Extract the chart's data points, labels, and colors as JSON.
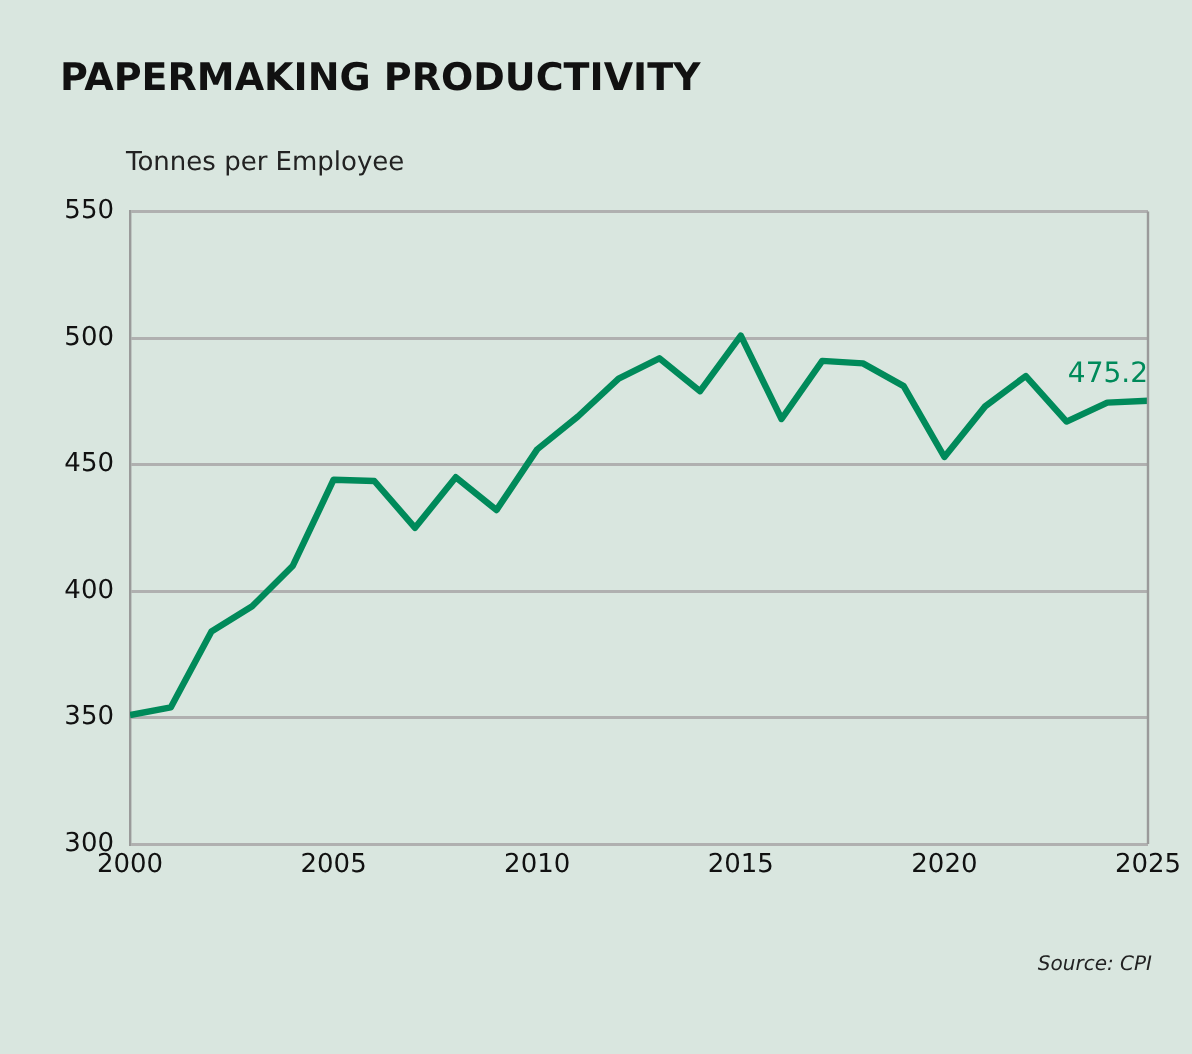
{
  "chart_data": {
    "type": "line",
    "title": "PAPERMAKING PRODUCTIVITY",
    "ylabel": "Tonnes per Employee",
    "x": [
      2000,
      2001,
      2002,
      2003,
      2004,
      2005,
      2006,
      2007,
      2008,
      2009,
      2010,
      2011,
      2012,
      2013,
      2014,
      2015,
      2016,
      2017,
      2018,
      2019,
      2020,
      2021,
      2022,
      2023,
      2024,
      2025
    ],
    "series": [
      {
        "color": "#008a5a",
        "values": [
          351,
          354,
          384,
          394,
          410,
          444,
          443.5,
          425,
          445,
          432,
          456,
          469,
          484,
          492,
          479,
          501,
          468,
          491,
          490,
          481,
          453,
          473,
          485,
          467,
          474.5,
          475.2
        ]
      }
    ],
    "xlim": [
      2000,
      2025
    ],
    "xticks": [
      2000,
      2005,
      2010,
      2015,
      2020,
      2025
    ],
    "ylim": [
      300,
      550
    ],
    "yticks": [
      300,
      350,
      400,
      450,
      500,
      550
    ],
    "grid": "y",
    "legend": false,
    "marker": "none",
    "line_style": "solid",
    "annotations": [
      {
        "text": "475.2",
        "x": 2025,
        "y": 475.2
      },
      "Source: CPI"
    ]
  }
}
